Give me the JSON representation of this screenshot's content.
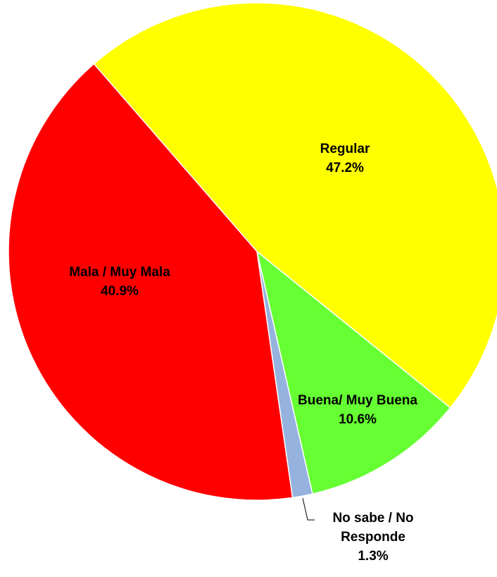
{
  "chart_data": {
    "type": "pie",
    "categories": [
      "Regular",
      "Buena/ Muy Buena",
      "No sabe / No Responde",
      "Mala / Muy Mala"
    ],
    "values": [
      47.2,
      10.6,
      1.3,
      40.9
    ],
    "value_labels": [
      "47.2%",
      "10.6%",
      "1.3%",
      "40.9%"
    ],
    "colors": [
      "#ffff00",
      "#66ff33",
      "#95b3de",
      "#ff0000"
    ]
  }
}
